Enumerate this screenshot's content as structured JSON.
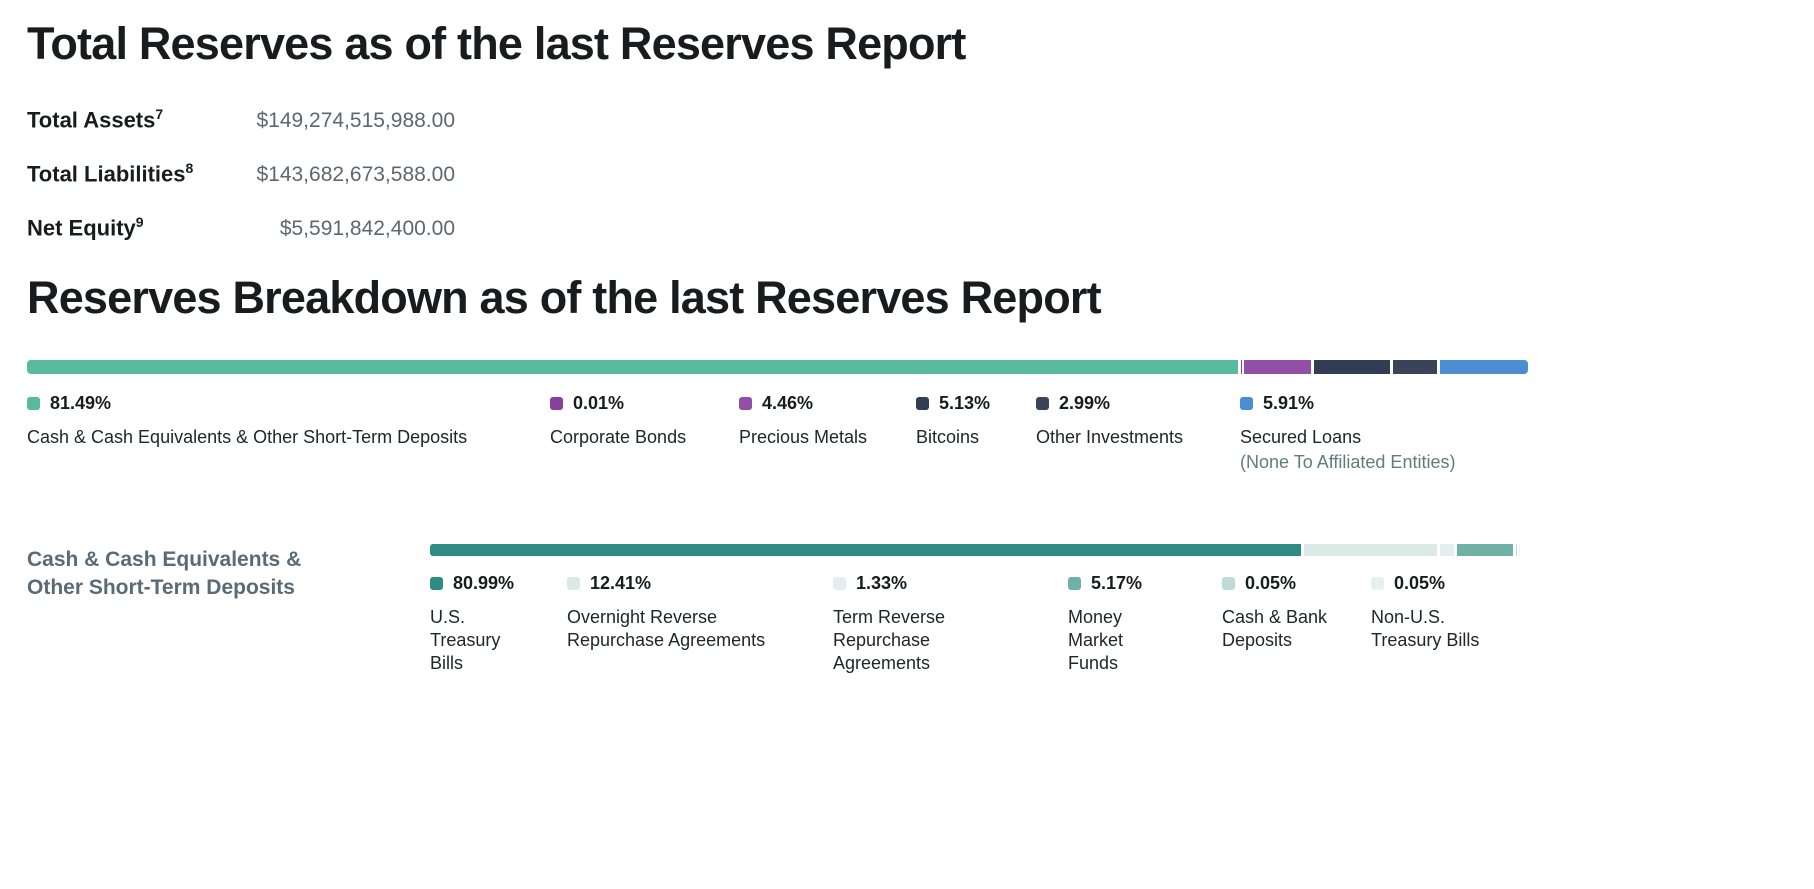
{
  "totals": {
    "heading": "Total Reserves as of the last Reserves Report",
    "rows": [
      {
        "label": "Total Assets",
        "footnote": "7",
        "value": "$149,274,515,988.00"
      },
      {
        "label": "Total Liabilities",
        "footnote": "8",
        "value": "$143,682,673,588.00"
      },
      {
        "label": "Net Equity",
        "footnote": "9",
        "value": "$5,591,842,400.00"
      }
    ]
  },
  "breakdown": {
    "heading": "Reserves Breakdown as of the last Reserves Report"
  },
  "chart_data": [
    {
      "type": "bar",
      "variant": "stacked-horizontal-100pct",
      "title": "Reserves Breakdown as of the last Reserves Report",
      "unit": "%",
      "legend_position": "below",
      "segments": [
        {
          "label": "Cash & Cash Equivalents & Other Short-Term Deposits",
          "value": 81.49,
          "pct": "81.49%",
          "color": "#57BB9C"
        },
        {
          "label": "Corporate Bonds",
          "value": 0.01,
          "pct": "0.01%",
          "color": "#8A3FA0"
        },
        {
          "label": "Precious Metals",
          "value": 4.46,
          "pct": "4.46%",
          "color": "#9150A5"
        },
        {
          "label": "Bitcoins",
          "value": 5.13,
          "pct": "5.13%",
          "color": "#313C55"
        },
        {
          "label": "Other Investments",
          "value": 2.99,
          "pct": "2.99%",
          "color": "#3A4458"
        },
        {
          "label": "Secured Loans",
          "sublabel": "(None To Affiliated Entities)",
          "value": 5.91,
          "pct": "5.91%",
          "color": "#4A8DD0"
        }
      ]
    },
    {
      "type": "bar",
      "variant": "stacked-horizontal-100pct",
      "title": "Cash & Cash Equivalents & Other Short-Term Deposits",
      "unit": "%",
      "legend_position": "below",
      "segments": [
        {
          "label": "U.S. Treasury Bills",
          "value": 80.99,
          "pct": "80.99%",
          "color": "#2E8C82"
        },
        {
          "label": "Overnight Reverse Repurchase Agreements",
          "value": 12.41,
          "pct": "12.41%",
          "color": "#DBE9E7"
        },
        {
          "label": "Term Reverse Repurchase Agreements",
          "value": 1.33,
          "pct": "1.33%",
          "color": "#E2EFED"
        },
        {
          "label": "Money Market Funds",
          "value": 5.17,
          "pct": "5.17%",
          "color": "#6FB1A6"
        },
        {
          "label": "Cash & Bank Deposits",
          "value": 0.05,
          "pct": "0.05%",
          "color": "#BFDBD6"
        },
        {
          "label": "Non-U.S. Treasury Bills",
          "value": 0.05,
          "pct": "0.05%",
          "color": "#E7F1EF"
        }
      ]
    }
  ]
}
